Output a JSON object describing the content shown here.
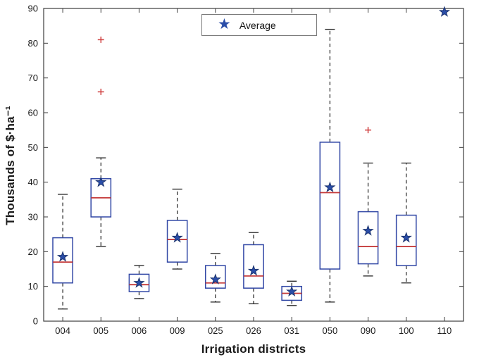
{
  "chart_data": {
    "type": "boxplot",
    "title": "",
    "xlabel": "Irrigation districts",
    "ylabel": "Thousands of $·ha⁻¹",
    "ylim": [
      0,
      90
    ],
    "yticks": [
      0,
      10,
      20,
      30,
      40,
      50,
      60,
      70,
      80,
      90
    ],
    "legend": {
      "label": "Average",
      "marker": "star"
    },
    "categories": [
      "004",
      "005",
      "006",
      "009",
      "025",
      "026",
      "031",
      "050",
      "090",
      "100",
      "110"
    ],
    "series": [
      {
        "district": "004",
        "whisker_low": 3.5,
        "q1": 11,
        "median": 17,
        "q3": 24,
        "whisker_high": 36.5,
        "average": 18.5,
        "outliers": []
      },
      {
        "district": "005",
        "whisker_low": 21.5,
        "q1": 30,
        "median": 35.5,
        "q3": 41,
        "whisker_high": 47,
        "average": 40,
        "outliers": [
          66,
          81
        ]
      },
      {
        "district": "006",
        "whisker_low": 6.5,
        "q1": 8.5,
        "median": 10.5,
        "q3": 13.5,
        "whisker_high": 16,
        "average": 11,
        "outliers": []
      },
      {
        "district": "009",
        "whisker_low": 15,
        "q1": 17,
        "median": 23.5,
        "q3": 29,
        "whisker_high": 38,
        "average": 24,
        "outliers": []
      },
      {
        "district": "025",
        "whisker_low": 5.5,
        "q1": 9.5,
        "median": 11,
        "q3": 16,
        "whisker_high": 19.5,
        "average": 12,
        "outliers": []
      },
      {
        "district": "026",
        "whisker_low": 5,
        "q1": 9.5,
        "median": 13,
        "q3": 22,
        "whisker_high": 25.5,
        "average": 14.5,
        "outliers": []
      },
      {
        "district": "031",
        "whisker_low": 4.5,
        "q1": 6,
        "median": 8,
        "q3": 10,
        "whisker_high": 11.5,
        "average": 8.5,
        "outliers": []
      },
      {
        "district": "050",
        "whisker_low": 5.5,
        "q1": 15,
        "median": 37,
        "q3": 51.5,
        "whisker_high": 84,
        "average": 38.5,
        "outliers": []
      },
      {
        "district": "090",
        "whisker_low": 13,
        "q1": 16.5,
        "median": 21.5,
        "q3": 31.5,
        "whisker_high": 45.5,
        "average": 26,
        "outliers": [
          55
        ]
      },
      {
        "district": "100",
        "whisker_low": 11,
        "q1": 16,
        "median": 21.5,
        "q3": 30.5,
        "whisker_high": 45.5,
        "average": 24,
        "outliers": []
      },
      {
        "district": "110",
        "whisker_low": null,
        "q1": null,
        "median": null,
        "q3": null,
        "whisker_high": null,
        "average": 89,
        "outliers": []
      }
    ],
    "colors": {
      "box": "#3147a5",
      "median": "#c53b3b",
      "whisker": "#222222",
      "outlier": "#d04040",
      "star": "#2a4da8",
      "star_edge": "#1b336f",
      "axis": "#3c3c3c",
      "text": "#1a1a1a"
    },
    "layout": {
      "grid": false,
      "legend_position": "top-center"
    }
  }
}
